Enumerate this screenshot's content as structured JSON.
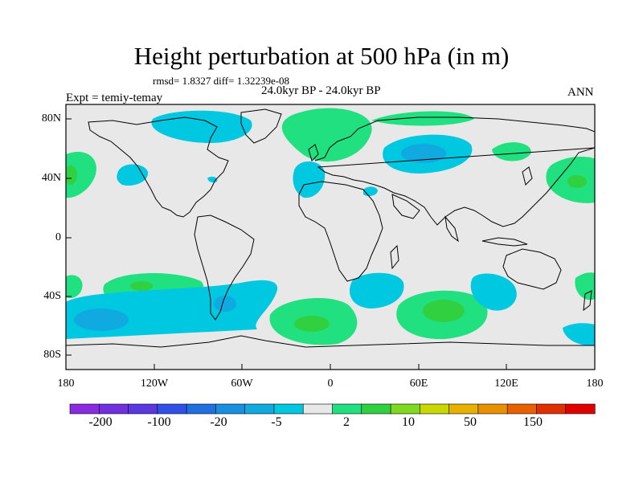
{
  "header": {
    "title": "Height perturbation at 500 hPa (in m)",
    "stats": "rmsd= 1.8327 diff= 1.32239e-08",
    "period": "24.0kyr BP - 24.0kyr BP",
    "experiment": "Expt = temiy-temay",
    "season": "ANN"
  },
  "map": {
    "projection": "cylindrical equidistant",
    "lon_range": [
      -180,
      180
    ],
    "lat_range": [
      -90,
      90
    ],
    "background_color": "#e8e8e8",
    "lat_labels": [
      "80N",
      "40N",
      "0",
      "40S",
      "80S"
    ],
    "lon_labels": [
      "180",
      "120W",
      "60W",
      "0",
      "60E",
      "120E",
      "180"
    ]
  },
  "colorbar": {
    "colors": [
      "#8a2be2",
      "#7030e0",
      "#5a3ae0",
      "#3050e8",
      "#2070e0",
      "#1890e0",
      "#10aae0",
      "#00c8e0",
      "#e8e8e8",
      "#20e080",
      "#30d040",
      "#80d820",
      "#c8d800",
      "#e8b000",
      "#e89000",
      "#e86000",
      "#e03000",
      "#e00000"
    ],
    "labels": [
      "-200",
      "-100",
      "-20",
      "-5",
      "2",
      "10",
      "50",
      "150"
    ]
  },
  "anomalies": [
    {
      "region": "Canadian Arctic",
      "level": "-5",
      "color": "#00c8e0"
    },
    {
      "region": "Eastern Europe / West Siberia",
      "level": "-5 to -20",
      "color": "#10aae0"
    },
    {
      "region": "Scandinavia / Greenland Sea",
      "level": "2",
      "color": "#20e080"
    },
    {
      "region": "Southern Ocean, South Pacific",
      "level": "-5 to -20",
      "color": "#10aae0"
    },
    {
      "region": "South Atlantic",
      "level": "2 to 10",
      "color": "#30d040"
    },
    {
      "region": "Southern Indian Ocean",
      "level": "2 to 10",
      "color": "#30d040"
    }
  ]
}
